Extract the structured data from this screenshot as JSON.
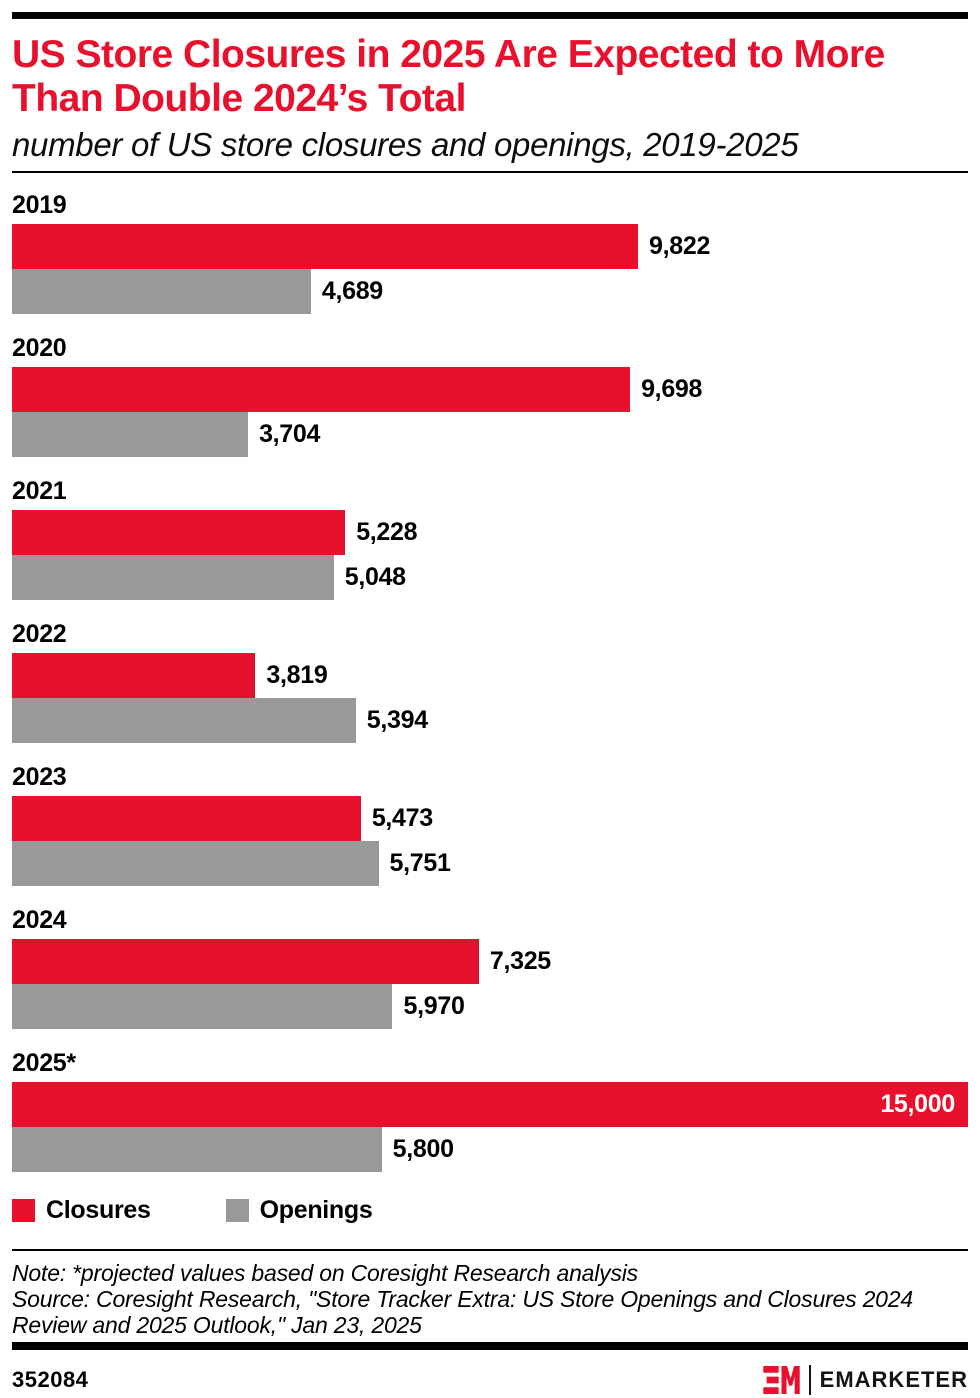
{
  "page": {
    "title_line1": "US Store Closures in 2025 Are Expected to More",
    "title_line2": "Than Double 2024’s Total",
    "subtitle": "number of US store closures and openings, 2019-2025"
  },
  "colors": {
    "closures_red": "#E8112D",
    "openings_gray": "#999999",
    "rule_black": "#000000"
  },
  "chart_data": {
    "type": "bar",
    "orientation": "horizontal",
    "title": "US Store Closures in 2025 Are Expected to More Than Double 2024’s Total",
    "subtitle": "number of US store closures and openings, 2019-2025",
    "categories": [
      "2019",
      "2020",
      "2021",
      "2022",
      "2023",
      "2024",
      "2025*"
    ],
    "series": [
      {
        "name": "Closures",
        "color": "#E8112D",
        "values": [
          9822,
          9698,
          5228,
          3819,
          5473,
          7325,
          15000
        ]
      },
      {
        "name": "Openings",
        "color": "#999999",
        "values": [
          4689,
          3704,
          5048,
          5394,
          5751,
          5970,
          5800
        ]
      }
    ],
    "value_labels": [
      [
        "9,822",
        "4,689"
      ],
      [
        "9,698",
        "3,704"
      ],
      [
        "5,228",
        "5,048"
      ],
      [
        "3,819",
        "5,394"
      ],
      [
        "5,473",
        "5,751"
      ],
      [
        "7,325",
        "5,970"
      ],
      [
        "15,000",
        "5,800"
      ]
    ],
    "xmax": 15000,
    "grid": false,
    "legend_position": "bottom",
    "value_label_position": "end-of-bar, inside bar when bar is near full width"
  },
  "legend": {
    "items": [
      {
        "label": "Closures",
        "color": "#E8112D"
      },
      {
        "label": "Openings",
        "color": "#999999"
      }
    ]
  },
  "footnote": {
    "note": "Note: *projected values based on Coresight Research analysis",
    "source": "Source: Coresight Research, \"Store Tracker Extra: US Store Openings and Closures 2024 Review and 2025 Outlook,\" Jan 23, 2025"
  },
  "footer": {
    "chart_id": "352084",
    "brand_name": "EMARKETER"
  }
}
